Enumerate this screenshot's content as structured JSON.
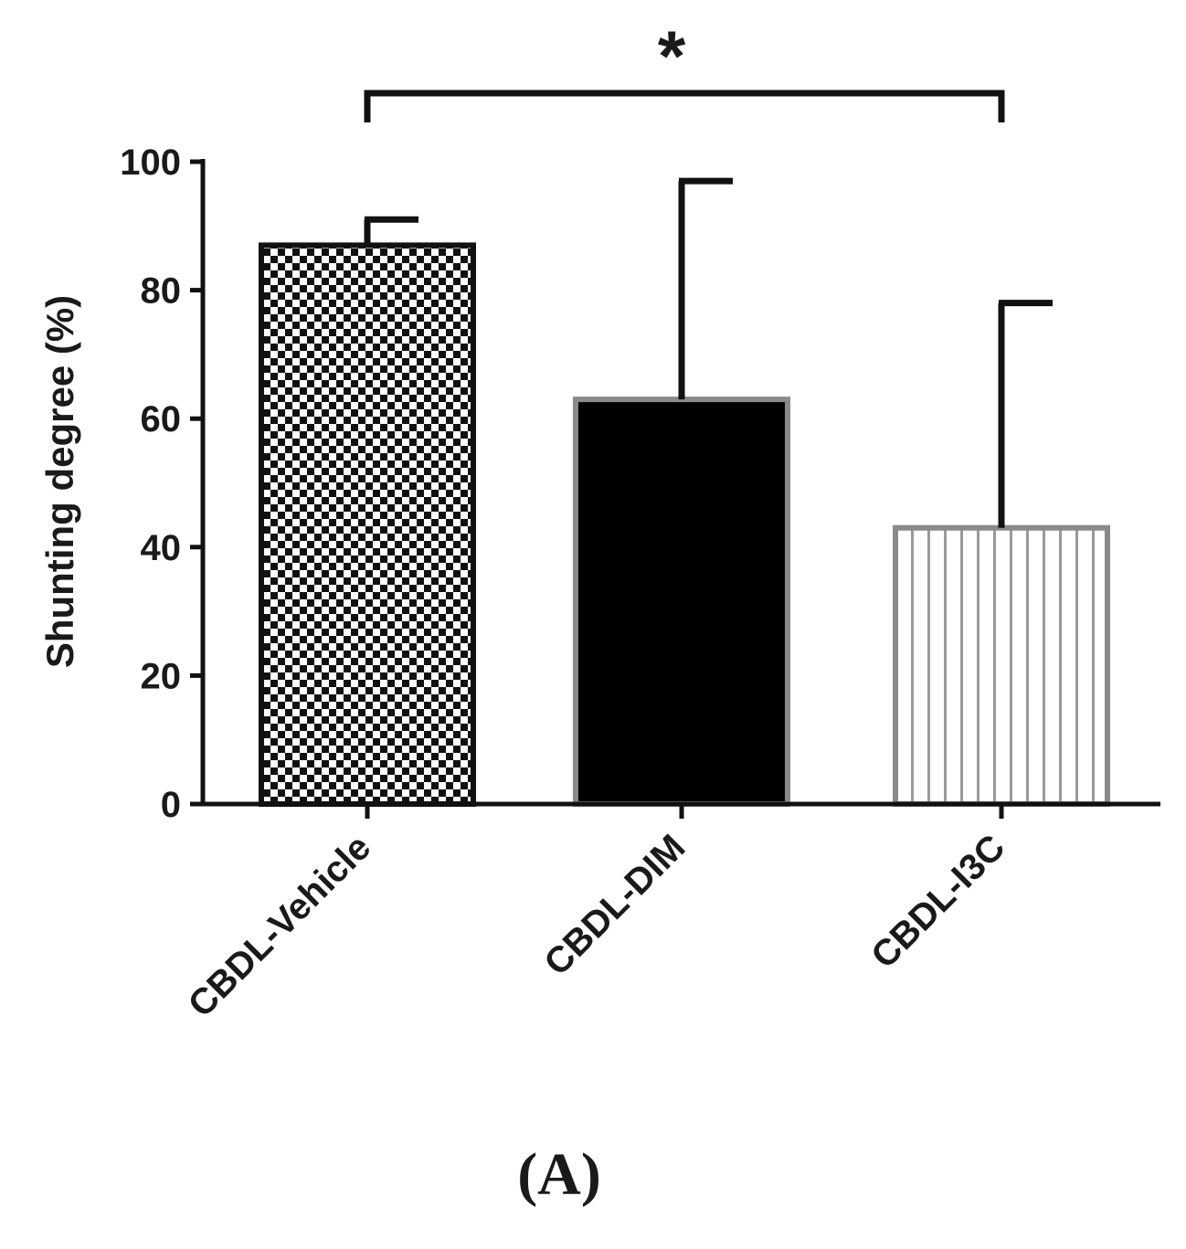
{
  "chart_data": {
    "type": "bar",
    "categories": [
      "CBDL-Vehicle",
      "CBDL-DIM",
      "CBDL-I3C"
    ],
    "values": [
      87,
      63,
      43
    ],
    "error_upper": [
      91,
      97,
      78
    ],
    "ylabel": "Shunting degree (%)",
    "xlabel": "",
    "ylim": [
      0,
      100
    ],
    "yticks": [
      0,
      20,
      40,
      60,
      80,
      100
    ],
    "bar_styles": [
      "checkerboard",
      "solid-black",
      "vertical-stripes"
    ],
    "significance": {
      "from": 0,
      "to": 2,
      "label": "*"
    },
    "panel_label": "(A)"
  },
  "colors": {
    "ink": "#111111",
    "bar_border_gray": "#8a8a8a",
    "stripe_gray": "#9a9a9a",
    "background": "#ffffff"
  }
}
